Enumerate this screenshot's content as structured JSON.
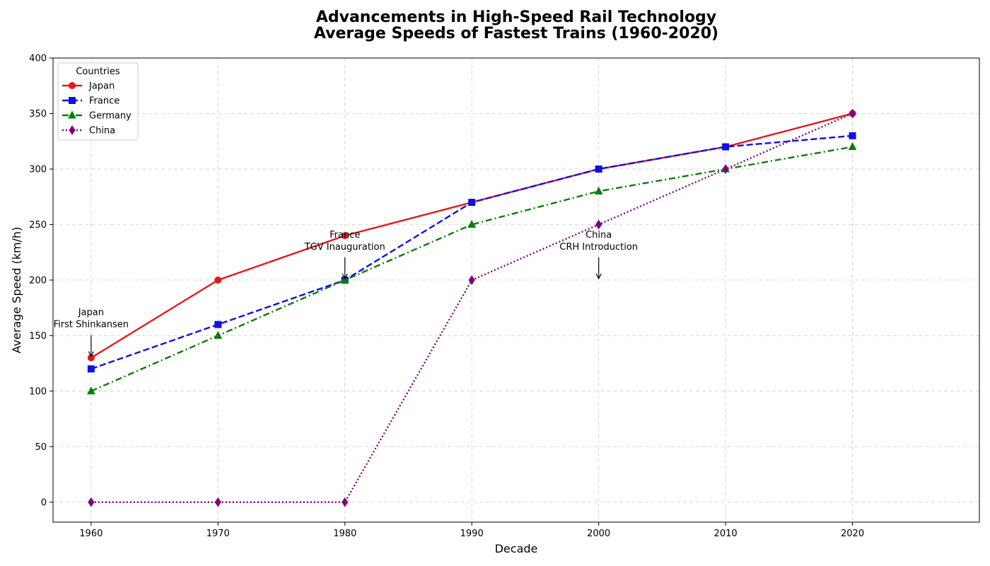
{
  "chart_data": {
    "type": "line",
    "title": "Advancements in High-Speed Rail Technology",
    "subtitle": "Average Speeds of Fastest Trains (1960-2020)",
    "xlabel": "Decade",
    "ylabel": "Average Speed (km/h)",
    "x": [
      1960,
      1970,
      1980,
      1990,
      2000,
      2010,
      2020
    ],
    "xlim": [
      1957,
      2030
    ],
    "ylim": [
      -18,
      400
    ],
    "x_ticks": [
      1960,
      1970,
      1980,
      1990,
      2000,
      2010,
      2020
    ],
    "y_ticks": [
      0,
      50,
      100,
      150,
      200,
      250,
      300,
      350,
      400
    ],
    "grid": true,
    "legend": {
      "title": "Countries",
      "placement": "top-left"
    },
    "series": [
      {
        "name": "Japan",
        "values": [
          130,
          200,
          240,
          270,
          300,
          320,
          350
        ],
        "color": "#e31a1c",
        "dash": "solid",
        "marker": "circle"
      },
      {
        "name": "France",
        "values": [
          120,
          160,
          200,
          270,
          300,
          320,
          330
        ],
        "color": "#1010e0",
        "dash": "dashed",
        "marker": "square"
      },
      {
        "name": "Germany",
        "values": [
          100,
          150,
          200,
          250,
          280,
          300,
          320
        ],
        "color": "#0a7d0a",
        "dash": "dashdot",
        "marker": "triangle"
      },
      {
        "name": "China",
        "values": [
          0,
          0,
          0,
          200,
          250,
          300,
          350
        ],
        "color": "#800080",
        "dash": "dotted",
        "marker": "diamond"
      }
    ],
    "annotations": [
      {
        "lines": [
          "Japan",
          "First Shinkansen"
        ],
        "x": 1960,
        "y": 130
      },
      {
        "lines": [
          "France",
          "TGV Inauguration"
        ],
        "x": 1980,
        "y": 200
      },
      {
        "lines": [
          "China",
          "CRH Introduction"
        ],
        "x": 2000,
        "y": 200
      }
    ]
  }
}
